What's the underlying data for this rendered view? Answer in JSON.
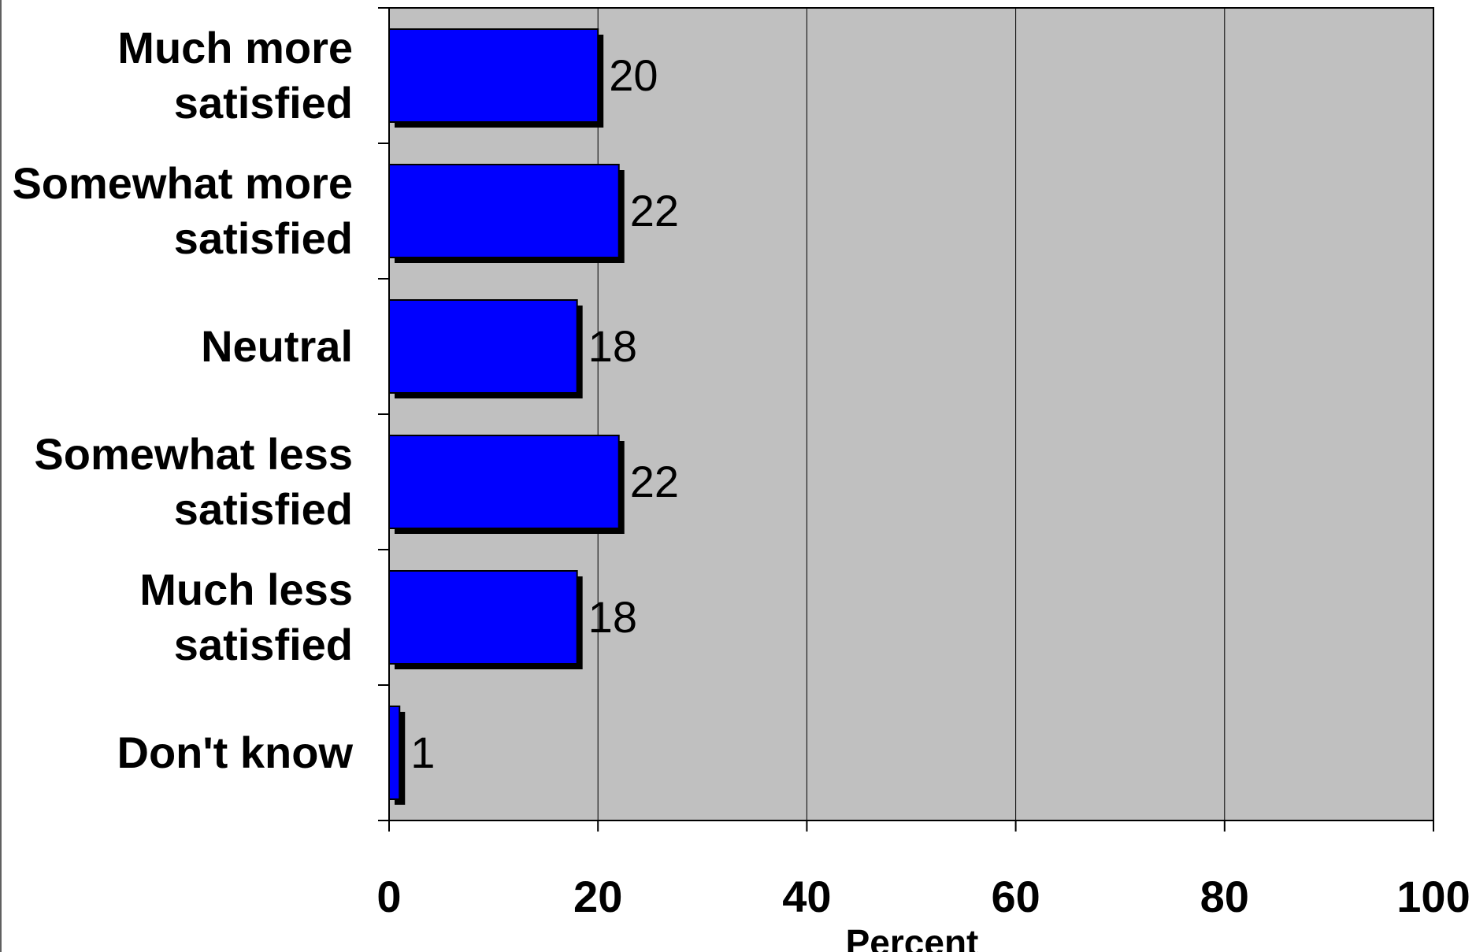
{
  "chart_data": {
    "type": "bar",
    "orientation": "horizontal",
    "categories": [
      [
        "Much more",
        "satisfied"
      ],
      [
        "Somewhat more",
        "satisfied"
      ],
      [
        "Neutral"
      ],
      [
        "Somewhat less",
        "satisfied"
      ],
      [
        "Much less",
        "satisfied"
      ],
      [
        "Don't know"
      ]
    ],
    "values": [
      20,
      22,
      18,
      22,
      18,
      1
    ],
    "data_labels": [
      "20",
      "22",
      "18",
      "22",
      "18",
      "1"
    ],
    "xlabel": "Percent",
    "xlim": [
      0,
      100
    ],
    "xticks": [
      0,
      20,
      40,
      60,
      80,
      100
    ],
    "xtick_labels": [
      "0",
      "20",
      "40",
      "60",
      "80",
      "100"
    ],
    "grid": "vertical",
    "legend": "none",
    "colors": {
      "bar": "#0000ff",
      "bar_shadow": "#000000",
      "plot_background": "#c0c0c0",
      "gridline": "#000000"
    }
  }
}
